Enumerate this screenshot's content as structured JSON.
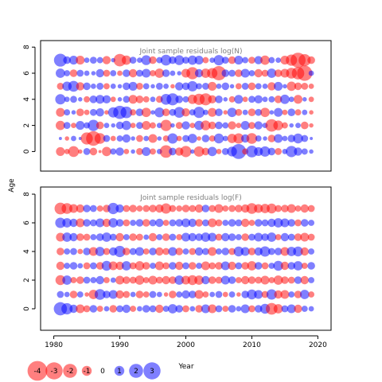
{
  "chart_data": {
    "type": "scatter",
    "subtype": "bubble-residuals",
    "ylabel": "Age",
    "xlabel": "Year",
    "x_ticks": [
      1980,
      1990,
      2000,
      2010,
      2020
    ],
    "y_ticks": [
      0,
      2,
      4,
      6,
      8
    ],
    "xlim": [
      1978,
      2022
    ],
    "ylim": [
      -1.5,
      8.5
    ],
    "years": [
      1981,
      1982,
      1983,
      1984,
      1985,
      1986,
      1987,
      1988,
      1989,
      1990,
      1991,
      1992,
      1993,
      1994,
      1995,
      1996,
      1997,
      1998,
      1999,
      2000,
      2001,
      2002,
      2003,
      2004,
      2005,
      2006,
      2007,
      2008,
      2009,
      2010,
      2011,
      2012,
      2013,
      2014,
      2015,
      2016,
      2017,
      2018,
      2019
    ],
    "ages": [
      0,
      1,
      2,
      3,
      4,
      5,
      6,
      7
    ],
    "colors": {
      "positive": "#0000ff",
      "negative": "#ff0000"
    },
    "panels": [
      {
        "title": "Joint sample residuals log(N)",
        "residuals": [
          [
            -0.8,
            -0.3,
            -1.2,
            -0.2,
            0.5,
            -0.6,
            -0.1,
            -0.9,
            0.4,
            0.7,
            -0.3,
            0.2,
            -0.5,
            0.8,
            -0.4,
            0.3,
            -1.6,
            0.6,
            -0.7,
            -1.3,
            0.2,
            -1.1,
            -0.6,
            0.9,
            -0.3,
            0.5,
            1.0,
            2.3,
            -0.4,
            1.4,
            0.8,
            1.1,
            0.6,
            -0.5,
            0.3,
            1.3,
            0.7,
            0.4,
            0.2
          ],
          [
            0.1,
            -0.2,
            0.3,
            0.1,
            -1.5,
            -2.2,
            -1.2,
            0.5,
            -0.3,
            0.4,
            0.7,
            0.2,
            -0.5,
            0.3,
            -0.8,
            0.2,
            -0.4,
            1.1,
            -0.3,
            0.5,
            0.9,
            -0.2,
            0.6,
            -0.4,
            1.0,
            0.3,
            -0.9,
            -1.1,
            0.7,
            -1.2,
            0.4,
            0.2,
            -0.6,
            0.8,
            0.3,
            0.6,
            1.0,
            0.5,
            0.1
          ],
          [
            -0.9,
            0.5,
            -0.3,
            0.8,
            0.4,
            1.3,
            -0.6,
            0.3,
            0.2,
            0.6,
            0.9,
            -0.3,
            0.5,
            -0.8,
            -0.4,
            0.3,
            -1.3,
            0.2,
            -0.5,
            0.7,
            -0.3,
            0.9,
            -1.0,
            -0.6,
            0.6,
            0.4,
            -0.7,
            -0.3,
            0.8,
            -0.5,
            0.7,
            0.3,
            -1.6,
            -1.0,
            -0.4,
            0.2,
            0.3,
            -0.6,
            -0.2
          ],
          [
            -0.8,
            0.4,
            0.2,
            -0.6,
            -0.3,
            0.5,
            0.7,
            -0.2,
            1.1,
            1.8,
            1.4,
            -0.4,
            0.6,
            -0.9,
            0.2,
            1.0,
            -0.6,
            0.5,
            1.2,
            -0.7,
            0.4,
            1.3,
            0.3,
            -0.8,
            0.6,
            -0.2,
            0.9,
            -0.5,
            0.3,
            -0.6,
            0.5,
            -0.9,
            0.2,
            0.8,
            -0.3,
            0.6,
            -0.4,
            0.3,
            -0.2
          ],
          [
            1.1,
            0.3,
            0.5,
            0.2,
            -0.4,
            0.6,
            0.8,
            0.7,
            -0.3,
            0.2,
            0.5,
            -0.8,
            -0.6,
            -0.4,
            0.3,
            -0.5,
            1.2,
            1.5,
            0.6,
            0.4,
            -0.9,
            -1.3,
            -1.5,
            -0.7,
            0.6,
            0.2,
            -0.4,
            0.8,
            -0.3,
            0.5,
            0.7,
            0.3,
            0.4,
            -0.6,
            0.9,
            0.3,
            -0.8,
            0.2,
            -0.3
          ],
          [
            -0.5,
            0.9,
            1.2,
            -0.7,
            0.6,
            0.3,
            0.5,
            -0.4,
            0.3,
            0.2,
            0.6,
            0.8,
            -0.5,
            0.4,
            0.2,
            0.5,
            0.3,
            -0.2,
            0.7,
            0.6,
            1.1,
            0.4,
            0.5,
            -0.8,
            0.3,
            0.6,
            0.2,
            -0.4,
            0.5,
            -0.6,
            0.4,
            0.3,
            -0.7,
            0.8,
            0.2,
            -0.9,
            -0.6,
            -0.5,
            -0.3
          ],
          [
            0.9,
            0.4,
            -0.6,
            0.5,
            0.3,
            0.2,
            0.7,
            -0.5,
            0.4,
            -0.3,
            0.6,
            -0.7,
            0.5,
            0.8,
            -0.4,
            -0.9,
            0.6,
            0.3,
            0.2,
            -0.8,
            -1.5,
            0.7,
            -0.9,
            -1.1,
            -2.1,
            0.6,
            0.5,
            -0.6,
            0.8,
            0.4,
            -0.7,
            -0.5,
            0.9,
            -0.6,
            -0.8,
            -1.2,
            -1.6,
            -2.4,
            0.3
          ],
          [
            1.7,
            0.6,
            0.8,
            -0.8,
            0.3,
            0.5,
            0.4,
            -0.7,
            0.2,
            -1.6,
            -0.9,
            0.5,
            0.3,
            1.0,
            -0.6,
            0.4,
            1.2,
            0.6,
            1.0,
            0.5,
            0.9,
            0.8,
            -0.4,
            0.3,
            1.1,
            0.5,
            -0.6,
            0.8,
            0.4,
            -0.5,
            0.7,
            -0.9,
            0.4,
            0.3,
            -0.8,
            -1.3,
            -2.3,
            -1.5,
            -0.6
          ]
        ]
      },
      {
        "title": "Joint sample residuals log(F)",
        "residuals": [
          [
            1.8,
            1.3,
            0.7,
            -0.8,
            -0.5,
            0.6,
            -0.4,
            0.3,
            -0.6,
            0.5,
            0.7,
            -0.4,
            0.3,
            0.6,
            0.5,
            -0.7,
            0.4,
            0.9,
            0.6,
            -0.5,
            0.3,
            -0.6,
            0.8,
            -0.8,
            0.5,
            -0.4,
            0.6,
            0.3,
            0.8,
            -0.5,
            0.6,
            1.0,
            -1.4,
            -0.9,
            0.5,
            0.8,
            -0.7,
            0.4,
            0.3
          ],
          [
            0.5,
            0.3,
            -0.6,
            0.4,
            -0.2,
            -0.9,
            1.2,
            0.6,
            0.8,
            -0.7,
            -0.5,
            0.3,
            -0.6,
            -0.4,
            0.5,
            0.3,
            -0.2,
            -0.6,
            0.4,
            0.7,
            0.6,
            -0.8,
            -0.4,
            0.3,
            0.5,
            -0.3,
            0.4,
            -0.2,
            0.6,
            1.0,
            0.8,
            -0.5,
            1.1,
            -0.7,
            -0.8,
            0.4,
            -0.6,
            0.9,
            -0.4
          ],
          [
            -1.0,
            0.9,
            -0.4,
            -0.6,
            0.5,
            0.4,
            0.7,
            -0.4,
            0.3,
            -0.8,
            -0.6,
            -0.5,
            -0.9,
            -0.4,
            -0.8,
            -0.5,
            -0.7,
            -0.6,
            0.9,
            -0.8,
            -1.0,
            -0.9,
            0.7,
            -0.6,
            -0.5,
            0.8,
            0.6,
            -0.4,
            -0.7,
            -0.6,
            -0.5,
            -0.8,
            -0.4,
            -0.9,
            -0.6,
            -0.5,
            0.6,
            -0.7,
            0.4
          ],
          [
            -0.7,
            0.4,
            0.6,
            0.3,
            -0.5,
            0.5,
            -0.6,
            1.0,
            -0.8,
            -0.7,
            0.9,
            -0.5,
            -0.9,
            -0.6,
            0.4,
            -0.8,
            -0.5,
            0.6,
            -0.7,
            0.5,
            -0.6,
            0.4,
            -0.8,
            -0.5,
            -0.6,
            0.8,
            -0.7,
            0.5,
            -0.6,
            -0.9,
            0.6,
            -0.5,
            0.4,
            1.0,
            -0.7,
            0.6,
            0.9,
            -0.4,
            0.6
          ],
          [
            -0.6,
            0.4,
            0.5,
            -0.3,
            0.6,
            -0.8,
            0.9,
            -0.5,
            0.7,
            1.3,
            -0.6,
            0.5,
            0.8,
            -0.4,
            0.6,
            -0.7,
            -0.5,
            0.8,
            -0.6,
            0.4,
            -0.5,
            0.7,
            0.5,
            -0.8,
            0.4,
            0.6,
            -0.5,
            1.0,
            0.8,
            -0.6,
            0.7,
            1.1,
            0.5,
            0.6,
            -0.8,
            0.9,
            1.0,
            -0.7,
            0.4
          ],
          [
            -0.8,
            0.9,
            0.7,
            -0.6,
            -0.5,
            0.4,
            0.6,
            0.9,
            0.5,
            -0.7,
            0.4,
            -0.6,
            -0.5,
            0.3,
            -0.7,
            0.4,
            -0.6,
            0.5,
            -0.4,
            0.8,
            0.7,
            0.6,
            0.9,
            0.8,
            -0.5,
            0.7,
            0.6,
            0.4,
            -0.6,
            0.5,
            0.8,
            0.6,
            0.9,
            -0.4,
            0.7,
            0.5,
            -0.6,
            -0.8,
            -0.5
          ],
          [
            1.1,
            0.9,
            0.7,
            -0.8,
            0.6,
            0.5,
            0.8,
            -0.7,
            0.9,
            0.6,
            -0.5,
            0.4,
            0.6,
            -0.6,
            0.5,
            0.7,
            -0.4,
            0.5,
            0.6,
            0.8,
            0.7,
            -0.6,
            0.5,
            -0.8,
            -0.5,
            0.4,
            0.6,
            0.5,
            -0.7,
            -0.4,
            0.6,
            0.5,
            0.7,
            0.9,
            0.8,
            0.6,
            -0.5,
            0.6,
            0.4
          ],
          [
            -1.4,
            -1.2,
            -0.8,
            -0.7,
            0.6,
            0.5,
            -0.4,
            -0.6,
            1.3,
            0.7,
            -0.5,
            -0.6,
            -0.4,
            -0.5,
            -0.6,
            -0.7,
            -1.1,
            -0.5,
            -0.4,
            -0.6,
            -0.5,
            -0.7,
            0.6,
            -0.5,
            -0.8,
            -0.4,
            -0.5,
            -0.6,
            -0.7,
            -1.2,
            -0.8,
            -0.9,
            -1.0,
            -0.5,
            -0.6,
            -0.8,
            -0.4,
            -0.7,
            -0.5
          ]
        ]
      }
    ],
    "legend": {
      "values": [
        -4,
        -3,
        -2,
        -1,
        0,
        1,
        2,
        3
      ],
      "labels": [
        "-4",
        "-3",
        "-2",
        "-1",
        "0",
        "1",
        "2",
        "3"
      ]
    }
  }
}
